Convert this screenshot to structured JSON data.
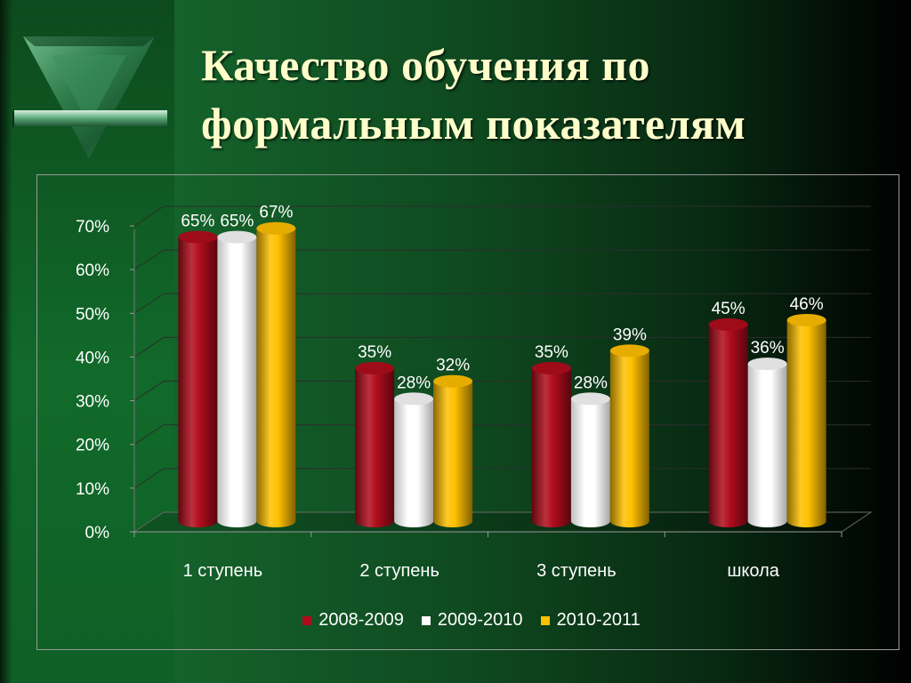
{
  "slide": {
    "title_line1": "Качество обучения по",
    "title_line2": "формальным показателям"
  },
  "chart_data": {
    "type": "bar",
    "style": "3d-cylinder",
    "categories": [
      "1 ступень",
      "2 ступень",
      "3 ступень",
      "школа"
    ],
    "series": [
      {
        "name": "2008-2009",
        "values": [
          65,
          35,
          35,
          45
        ],
        "labels": [
          "65%",
          "35%",
          "35%",
          "45%"
        ],
        "color": "#b00c1c"
      },
      {
        "name": "2009-2010",
        "values": [
          65,
          28,
          28,
          36
        ],
        "labels": [
          "65%",
          "28%",
          "28%",
          "36%"
        ],
        "color": "#ffffff"
      },
      {
        "name": "2010-2011",
        "values": [
          67,
          32,
          39,
          46
        ],
        "labels": [
          "67%",
          "32%",
          "39%",
          "46%"
        ],
        "color": "#ffc000"
      }
    ],
    "y_ticks": [
      "0%",
      "10%",
      "20%",
      "30%",
      "40%",
      "50%",
      "60%",
      "70%"
    ],
    "ylim": [
      0,
      70
    ],
    "grid": true,
    "legend_position": "bottom"
  }
}
